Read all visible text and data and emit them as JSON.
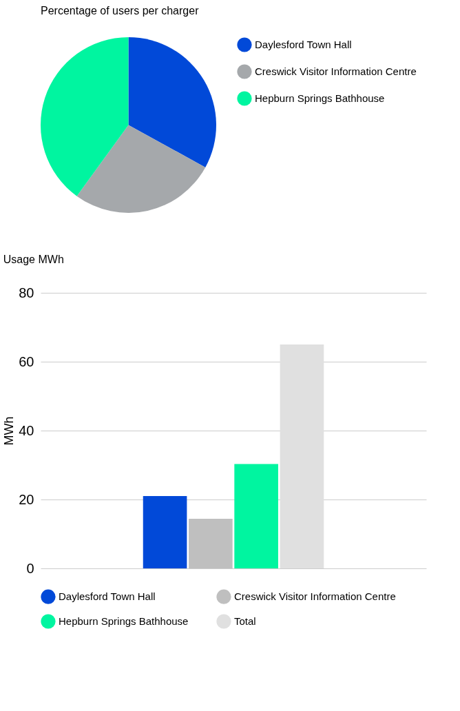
{
  "chart_data": [
    {
      "type": "pie",
      "title": "Percentage of users per charger",
      "categories": [
        "Daylesford Town Hall",
        "Creswick Visitor Information Centre",
        "Hepburn Springs Bathhouse"
      ],
      "values": [
        33,
        27,
        40
      ],
      "colors": [
        "#0149d8",
        "#a5a8ab",
        "#00f5a0"
      ],
      "legend": "right"
    },
    {
      "type": "bar",
      "title": "Usage MWh",
      "ylabel": "MWh",
      "categories": [
        null
      ],
      "series": [
        {
          "name": "Daylesford Town Hall",
          "color": "#0149d8",
          "values": [
            21
          ]
        },
        {
          "name": "Creswick Visitor Information Centre",
          "color": "#bfbfbf",
          "values": [
            14.4
          ]
        },
        {
          "name": "Hepburn Springs Bathhouse",
          "color": "#00f5a0",
          "values": [
            30.3
          ]
        },
        {
          "name": "Total",
          "color": "#e0e0e0",
          "values": [
            65
          ]
        }
      ],
      "ylim": [
        0,
        80
      ],
      "yticks": [
        0,
        20,
        40,
        60,
        80
      ],
      "grid": "y",
      "legend": "bottom"
    }
  ]
}
